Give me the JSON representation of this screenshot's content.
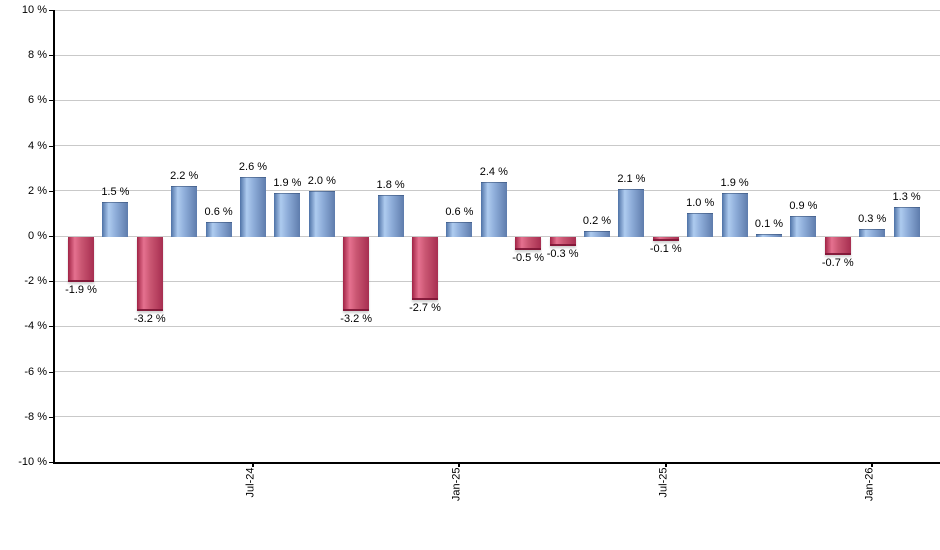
{
  "chart_data": {
    "type": "bar",
    "title": "",
    "xlabel": "",
    "ylabel": "",
    "unit": "%",
    "ylim": [
      -10,
      10
    ],
    "grid": true,
    "legend": "none",
    "y_ticks": [
      {
        "value": 10,
        "label": "10 %"
      },
      {
        "value": 8,
        "label": "8 %"
      },
      {
        "value": 6,
        "label": "6 %"
      },
      {
        "value": 4,
        "label": "4 %"
      },
      {
        "value": 2,
        "label": "2 %"
      },
      {
        "value": 0,
        "label": "0 %"
      },
      {
        "value": -2,
        "label": "-2 %"
      },
      {
        "value": -4,
        "label": "-4 %"
      },
      {
        "value": -6,
        "label": "-6 %"
      },
      {
        "value": -8,
        "label": "-8 %"
      },
      {
        "value": -10,
        "label": "-10 %"
      }
    ],
    "x_ticks": [
      {
        "bar_index": 5,
        "label": "Jul-24"
      },
      {
        "bar_index": 11,
        "label": "Jan-25"
      },
      {
        "bar_index": 17,
        "label": "Jul-25"
      },
      {
        "bar_index": 23,
        "label": "Jan-26"
      }
    ],
    "bars": [
      {
        "value": -1.9,
        "label": "-1.9 %"
      },
      {
        "value": 1.5,
        "label": "1.5 %"
      },
      {
        "value": -3.2,
        "label": "-3.2 %"
      },
      {
        "value": 2.2,
        "label": "2.2 %"
      },
      {
        "value": 0.6,
        "label": "0.6 %"
      },
      {
        "value": 2.6,
        "label": "2.6 %"
      },
      {
        "value": 1.9,
        "label": "1.9 %"
      },
      {
        "value": 2.0,
        "label": "2.0 %"
      },
      {
        "value": -3.2,
        "label": "-3.2 %"
      },
      {
        "value": 1.8,
        "label": "1.8 %"
      },
      {
        "value": -2.7,
        "label": "-2.7 %"
      },
      {
        "value": 0.6,
        "label": "0.6 %"
      },
      {
        "value": 2.4,
        "label": "2.4 %"
      },
      {
        "value": -0.5,
        "label": "-0.5 %"
      },
      {
        "value": -0.3,
        "label": "-0.3 %"
      },
      {
        "value": 0.2,
        "label": "0.2 %"
      },
      {
        "value": 2.1,
        "label": "2.1 %"
      },
      {
        "value": -0.1,
        "label": "-0.1 %"
      },
      {
        "value": 1.0,
        "label": "1.0 %"
      },
      {
        "value": 1.9,
        "label": "1.9 %"
      },
      {
        "value": 0.1,
        "label": "0.1 %"
      },
      {
        "value": 0.9,
        "label": "0.9 %"
      },
      {
        "value": -0.7,
        "label": "-0.7 %"
      },
      {
        "value": 0.3,
        "label": "0.3 %"
      },
      {
        "value": 1.3,
        "label": "1.3 %"
      }
    ],
    "colors": {
      "positive_gradient": [
        "#4E72A6",
        "#AECBEF",
        "#8FAEDA",
        "#5E7CAC"
      ],
      "negative_gradient": [
        "#A02345",
        "#E5718F",
        "#C95672",
        "#A72E50"
      ],
      "gradient_stops_pct": [
        0,
        26,
        52,
        100
      ],
      "grid_color": "#c9c9c9",
      "axis_color": "#000000",
      "text_color": "#000000"
    }
  }
}
